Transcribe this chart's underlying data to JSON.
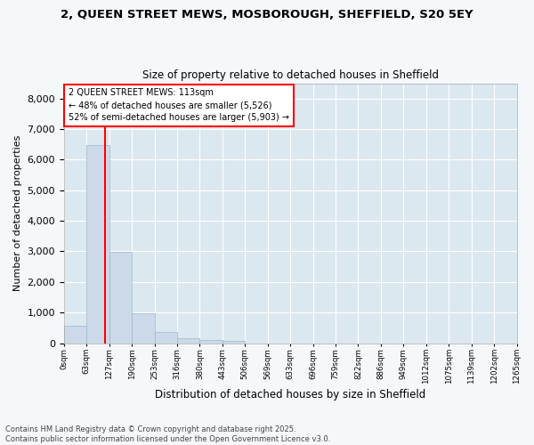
{
  "title_line1": "2, QUEEN STREET MEWS, MOSBOROUGH, SHEFFIELD, S20 5EY",
  "title_line2": "Size of property relative to detached houses in Sheffield",
  "xlabel": "Distribution of detached houses by size in Sheffield",
  "ylabel": "Number of detached properties",
  "bar_color": "#ccd9e8",
  "bar_edge_color": "#9ab8d0",
  "plot_bg_color": "#dce8f0",
  "fig_bg_color": "#f5f8fa",
  "grid_color": "#ffffff",
  "annotation_line_color": "red",
  "annotation_property": "2 QUEEN STREET MEWS: 113sqm",
  "annotation_left": "← 48% of detached houses are smaller (5,526)",
  "annotation_right": "52% of semi-detached houses are larger (5,903) →",
  "property_sqm": 113,
  "bin_width": 63,
  "bin_labels": [
    "0sqm",
    "63sqm",
    "127sqm",
    "190sqm",
    "253sqm",
    "316sqm",
    "380sqm",
    "443sqm",
    "506sqm",
    "569sqm",
    "633sqm",
    "696sqm",
    "759sqm",
    "822sqm",
    "886sqm",
    "949sqm",
    "1012sqm",
    "1075sqm",
    "1139sqm",
    "1202sqm",
    "1265sqm"
  ],
  "values": [
    560,
    6480,
    2980,
    980,
    360,
    165,
    95,
    60,
    0,
    0,
    0,
    0,
    0,
    0,
    0,
    0,
    0,
    0,
    0,
    0
  ],
  "ylim": [
    0,
    8500
  ],
  "yticks": [
    0,
    1000,
    2000,
    3000,
    4000,
    5000,
    6000,
    7000,
    8000
  ],
  "footer_line1": "Contains HM Land Registry data © Crown copyright and database right 2025.",
  "footer_line2": "Contains public sector information licensed under the Open Government Licence v3.0."
}
